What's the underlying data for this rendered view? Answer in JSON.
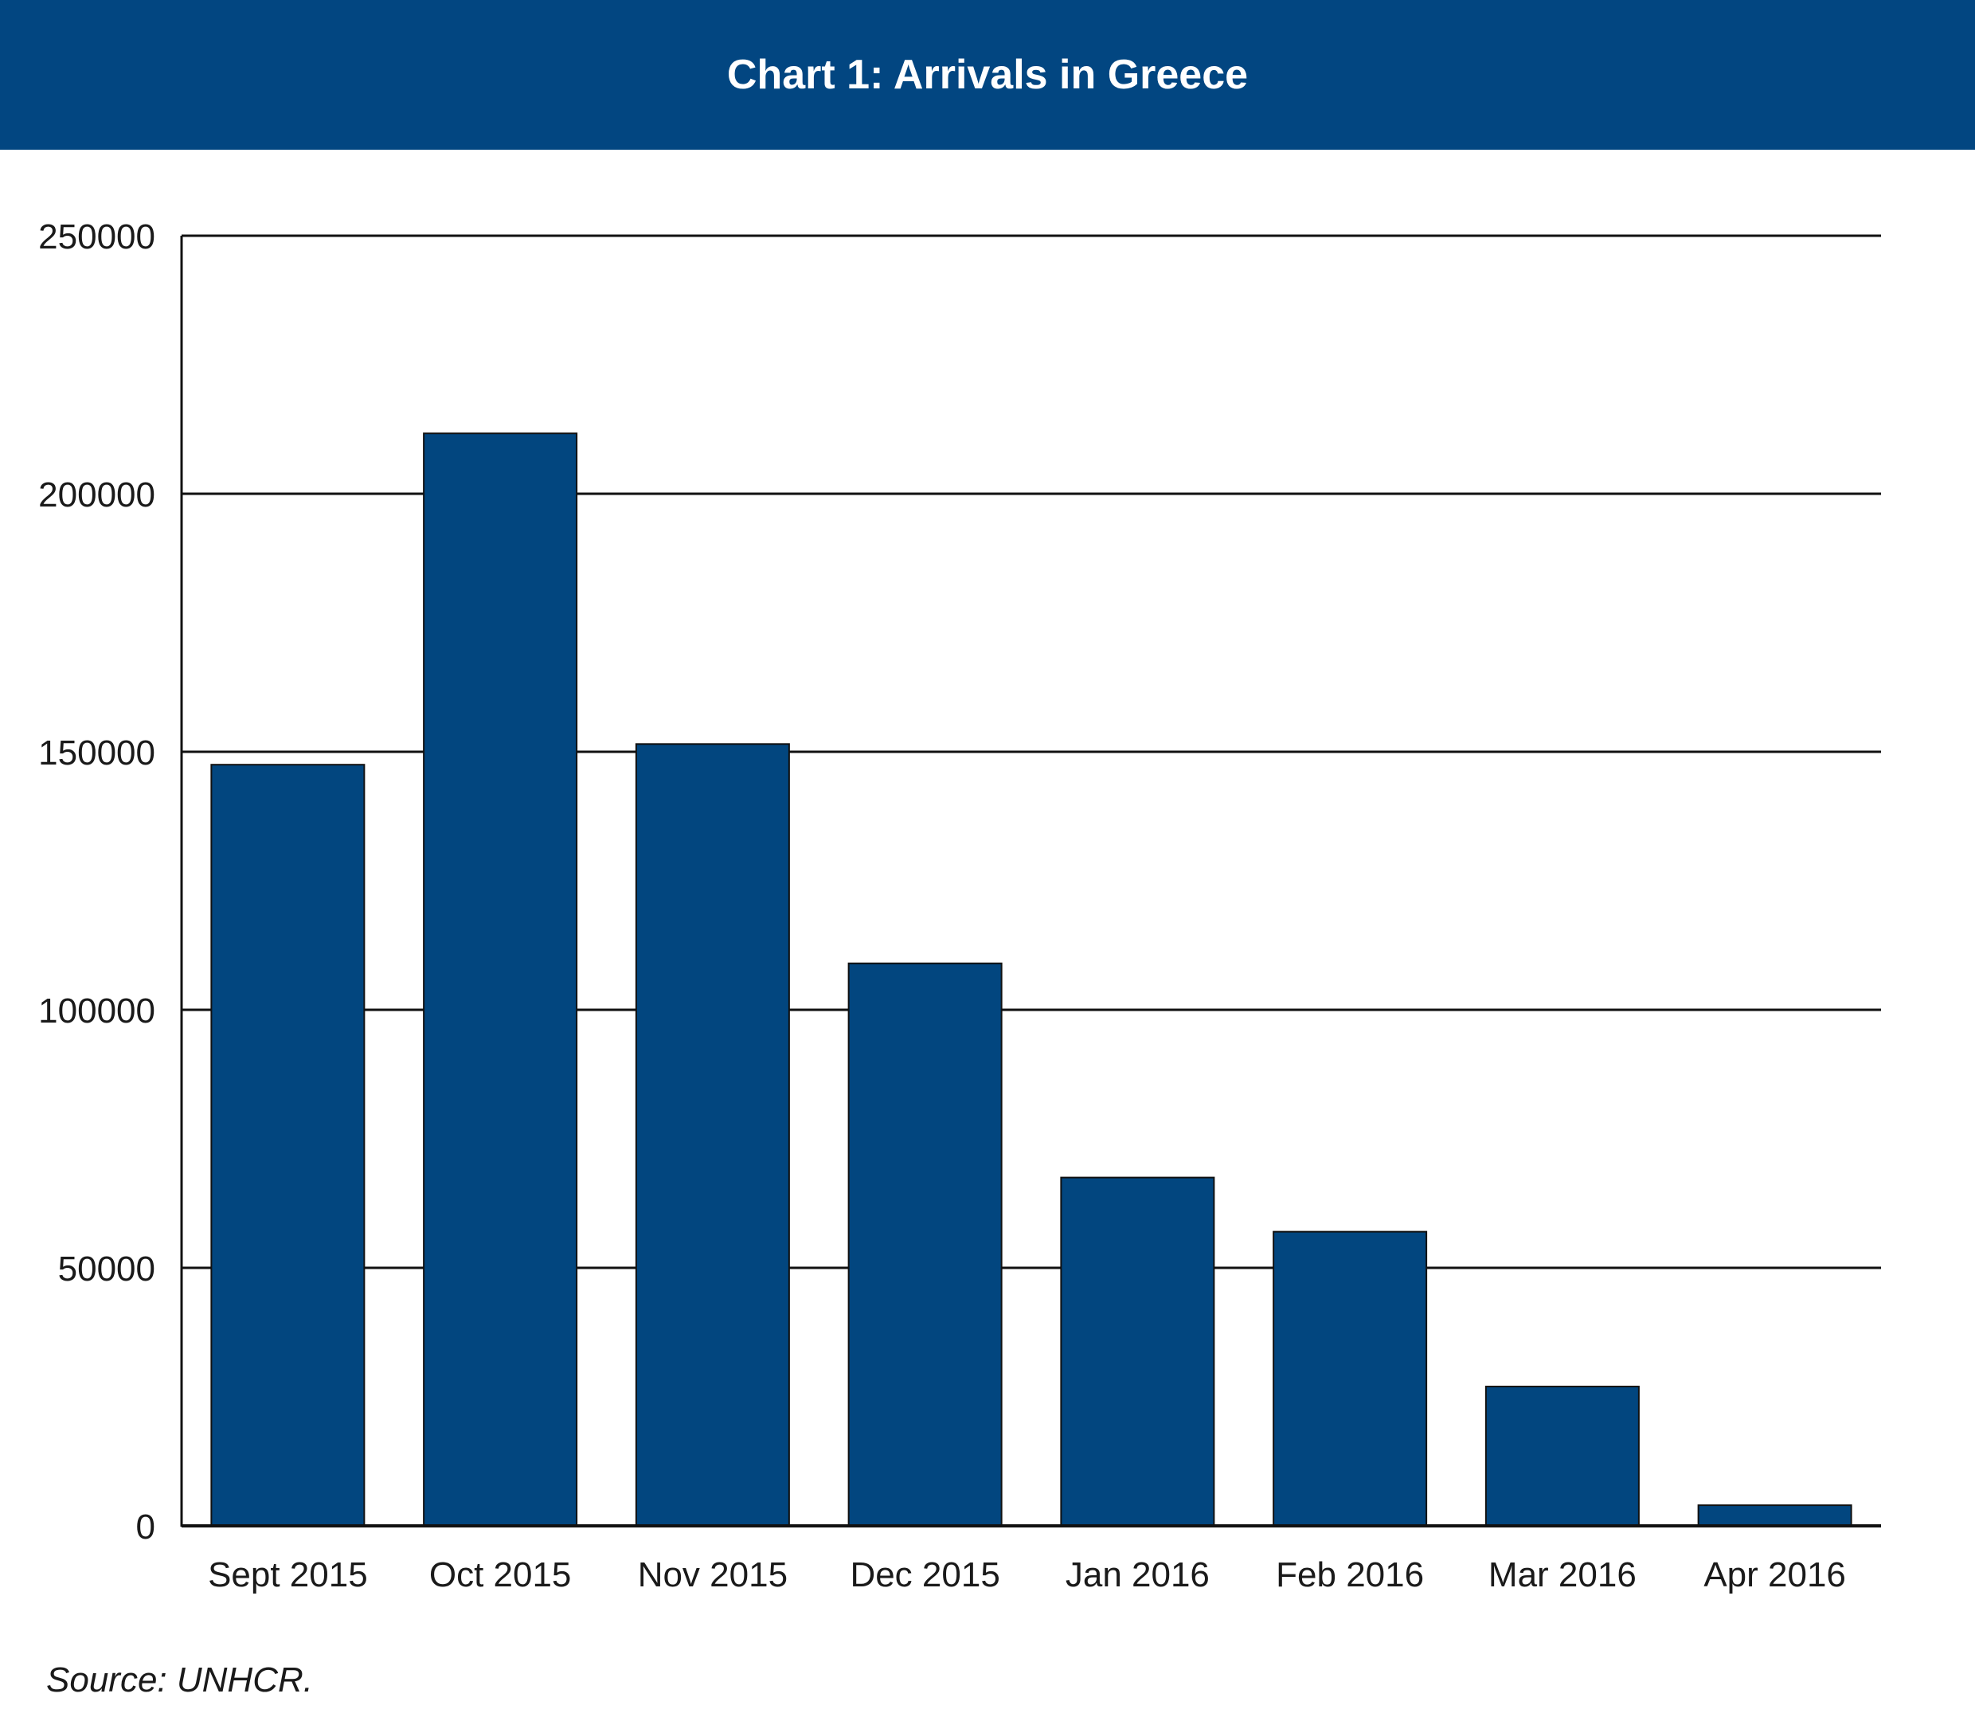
{
  "colors": {
    "header_bg": "#024681",
    "bar": "#02467f",
    "bar_stroke": "#111111",
    "grid": "#111111"
  },
  "header": {
    "title": "Chart 1: Arrivals in Greece"
  },
  "source": "Source: UNHCR.",
  "chart_data": {
    "type": "bar",
    "title": "Chart 1: Arrivals in Greece",
    "xlabel": "",
    "ylabel": "",
    "categories": [
      "Sept 2015",
      "Oct 2015",
      "Nov 2015",
      "Dec 2015",
      "Jan 2016",
      "Feb 2016",
      "Mar 2016",
      "Apr 2016"
    ],
    "values": [
      147500,
      211700,
      151500,
      109000,
      67500,
      57000,
      27000,
      4000
    ],
    "yticks": [
      0,
      50000,
      100000,
      150000,
      200000,
      250000
    ],
    "ylim": [
      0,
      250000
    ],
    "grid": true,
    "legend": false
  }
}
